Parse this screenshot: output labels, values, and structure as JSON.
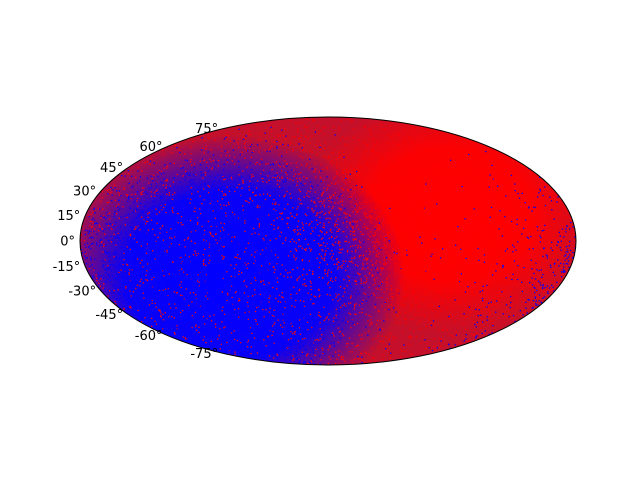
{
  "chart_data": {
    "type": "scatter",
    "projection": "mollweide",
    "title": "",
    "xlabel": "",
    "ylabel": "",
    "grid": false,
    "latitude_ticks": [
      {
        "value": 75,
        "label": "75°"
      },
      {
        "value": 60,
        "label": "60°"
      },
      {
        "value": 45,
        "label": "45°"
      },
      {
        "value": 30,
        "label": "30°"
      },
      {
        "value": 15,
        "label": "15°"
      },
      {
        "value": 0,
        "label": "0°"
      },
      {
        "value": -15,
        "label": "-15°"
      },
      {
        "value": -30,
        "label": "-30°"
      },
      {
        "value": -45,
        "label": "-45°"
      },
      {
        "value": -60,
        "label": "-60°"
      },
      {
        "value": -75,
        "label": "-75°"
      }
    ],
    "series": [
      {
        "color": "#0000ff",
        "density_center": {
          "lon": -100,
          "lat": -15
        }
      },
      {
        "color": "#ff0000",
        "density_center": {
          "lon": 60,
          "lat": 10
        }
      }
    ]
  }
}
